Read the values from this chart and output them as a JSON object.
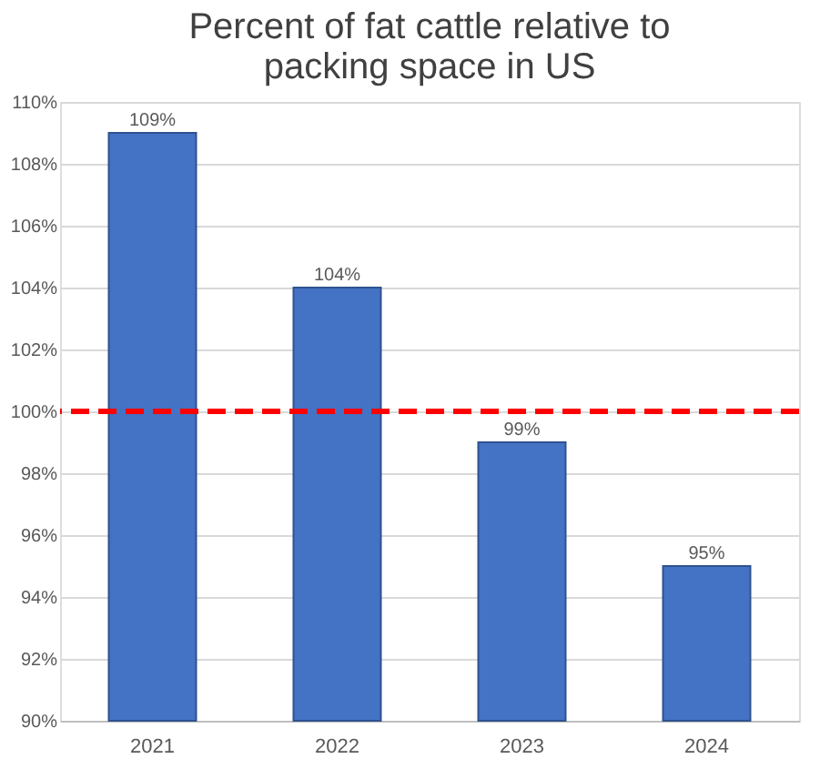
{
  "chart_data": {
    "type": "bar",
    "title": "Percent of fat cattle relative to packing space in US",
    "categories": [
      "2021",
      "2022",
      "2023",
      "2024"
    ],
    "values": [
      109,
      104,
      99,
      95
    ],
    "color": "#4472c4",
    "value_labels": [
      "109%",
      "104%",
      "99%",
      "95%"
    ],
    "ylim": [
      90,
      110
    ],
    "yticks": [
      {
        "value": 90,
        "label": "90%"
      },
      {
        "value": 92,
        "label": "92%"
      },
      {
        "value": 94,
        "label": "94%"
      },
      {
        "value": 96,
        "label": "96%"
      },
      {
        "value": 98,
        "label": "98%"
      },
      {
        "value": 100,
        "label": "100%"
      },
      {
        "value": 102,
        "label": "102%"
      },
      {
        "value": 104,
        "label": "104%"
      },
      {
        "value": 106,
        "label": "106%"
      },
      {
        "value": 108,
        "label": "108%"
      },
      {
        "value": 110,
        "label": "110%"
      }
    ],
    "ref_lines": [
      {
        "axis": "y",
        "value": 100,
        "color": "#ff0000",
        "line_style": "dashed"
      }
    ],
    "grid": "y"
  }
}
